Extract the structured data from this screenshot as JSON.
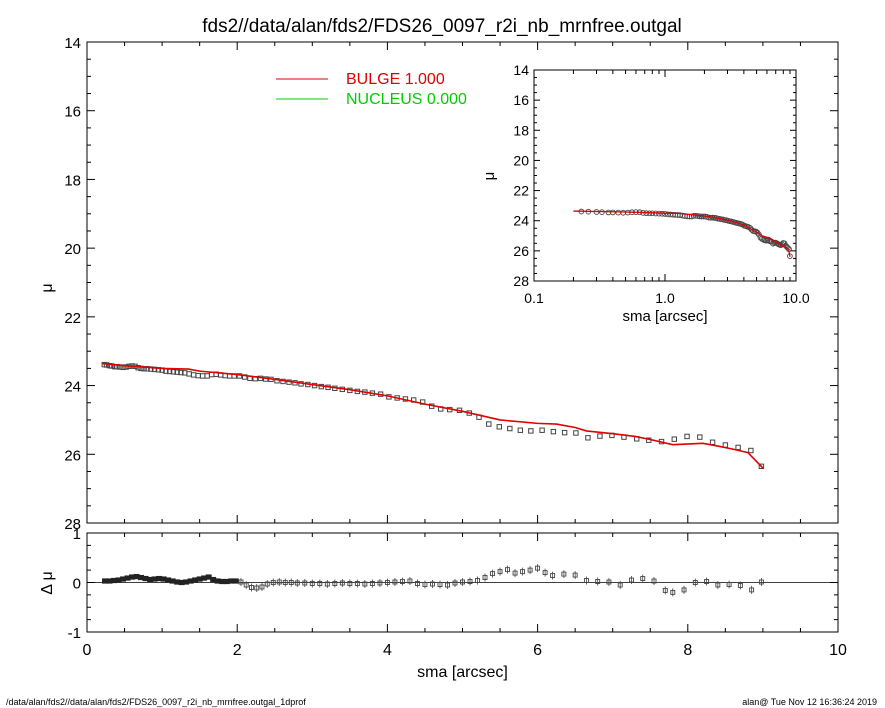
{
  "title": "fds2//data/alan/fds2/FDS26_0097_r2i_nb_mrnfree.outgal",
  "footer_left": "/data/alan/fds2//data/alan/fds2/FDS26_0097_r2i_nb_mrnfree.outgal_1dprof",
  "footer_right": "alan@  Tue Nov 12 16:36:24 2019",
  "colors": {
    "bulge": "#e00000",
    "nucleus": "#00cc00",
    "data": "#444444"
  },
  "chart_data": [
    {
      "id": "main",
      "type": "scatter",
      "xlabel": "",
      "ylabel": "μ",
      "xlim": [
        0,
        10
      ],
      "ylim": [
        28,
        14
      ],
      "y_ticks": [
        "14",
        "16",
        "18",
        "20",
        "22",
        "24",
        "26",
        "28"
      ],
      "legend": [
        {
          "name": "BULGE  1.000",
          "color": "#e00000"
        },
        {
          "name": "NUCLEUS  0.000",
          "color": "#00cc00"
        }
      ],
      "series": [
        {
          "name": "data",
          "kind": "points",
          "x": [
            0.23,
            0.26,
            0.3,
            0.33,
            0.37,
            0.4,
            0.44,
            0.48,
            0.52,
            0.56,
            0.6,
            0.64,
            0.68,
            0.72,
            0.76,
            0.8,
            0.85,
            0.9,
            0.95,
            1.0,
            1.05,
            1.1,
            1.15,
            1.2,
            1.25,
            1.3,
            1.36,
            1.42,
            1.48,
            1.54,
            1.6,
            1.66,
            1.72,
            1.78,
            1.84,
            1.9,
            1.96,
            2.03,
            2.1,
            2.17,
            2.24,
            2.31,
            2.38,
            2.45,
            2.53,
            2.61,
            2.69,
            2.77,
            2.85,
            2.94,
            3.03,
            3.12,
            3.21,
            3.3,
            3.4,
            3.5,
            3.6,
            3.7,
            3.8,
            3.91,
            4.02,
            4.13,
            4.24,
            4.35,
            4.47,
            4.59,
            4.71,
            4.83,
            4.96,
            5.09,
            5.22,
            5.35,
            5.49,
            5.63,
            5.77,
            5.91,
            6.06,
            6.21,
            6.36,
            6.51,
            6.67,
            6.83,
            6.99,
            7.15,
            7.32,
            7.48,
            7.65,
            7.82,
            7.99,
            8.16,
            8.33,
            8.5,
            8.67,
            8.84,
            8.98
          ],
          "y": [
            23.39,
            23.4,
            23.42,
            23.43,
            23.45,
            23.45,
            23.46,
            23.47,
            23.46,
            23.44,
            23.43,
            23.44,
            23.48,
            23.5,
            23.51,
            23.51,
            23.52,
            23.53,
            23.54,
            23.55,
            23.58,
            23.59,
            23.6,
            23.61,
            23.62,
            23.63,
            23.66,
            23.69,
            23.71,
            23.72,
            23.72,
            23.68,
            23.67,
            23.69,
            23.71,
            23.72,
            23.72,
            23.72,
            23.75,
            23.79,
            23.8,
            23.79,
            23.81,
            23.82,
            23.86,
            23.88,
            23.9,
            23.92,
            23.95,
            23.97,
            24.0,
            24.03,
            24.05,
            24.08,
            24.11,
            24.14,
            24.17,
            24.19,
            24.22,
            24.25,
            24.33,
            24.36,
            24.39,
            24.42,
            24.48,
            24.6,
            24.68,
            24.7,
            24.72,
            24.8,
            24.92,
            25.12,
            25.2,
            25.25,
            25.3,
            25.32,
            25.3,
            25.34,
            25.37,
            25.38,
            25.52,
            25.47,
            25.45,
            25.5,
            25.55,
            25.59,
            25.63,
            25.56,
            25.48,
            25.5,
            25.65,
            25.73,
            25.8,
            25.89,
            26.35
          ]
        },
        {
          "name": "BULGE  1.000",
          "kind": "line",
          "color": "#e00000",
          "x": [
            0.2,
            0.5,
            1.0,
            1.35,
            1.5,
            2.0,
            2.5,
            3.0,
            3.5,
            4.0,
            4.5,
            5.0,
            5.5,
            6.0,
            6.25,
            6.5,
            6.65,
            7.0,
            7.3,
            7.5,
            7.8,
            8.2,
            8.4,
            8.6,
            8.8,
            9.0
          ],
          "y": [
            23.36,
            23.42,
            23.5,
            23.52,
            23.58,
            23.68,
            23.82,
            23.97,
            24.12,
            24.3,
            24.54,
            24.75,
            25.0,
            25.1,
            25.12,
            25.22,
            25.32,
            25.4,
            25.48,
            25.57,
            25.72,
            25.68,
            25.76,
            25.85,
            25.95,
            26.4
          ]
        }
      ]
    },
    {
      "id": "inset",
      "type": "scatter",
      "xlabel": "sma [arcsec]",
      "ylabel": "μ",
      "xscale": "log",
      "xlim": [
        0.1,
        10
      ],
      "ylim": [
        28,
        14
      ],
      "x_ticks": [
        "0.1",
        "1.0",
        "10.0"
      ],
      "y_ticks": [
        "14",
        "16",
        "18",
        "20",
        "22",
        "24",
        "26",
        "28"
      ],
      "series": [
        {
          "name": "data",
          "kind": "points",
          "ref": "main.data"
        },
        {
          "name": "BULGE  1.000",
          "kind": "line",
          "ref": "main.bulge",
          "color": "#e00000"
        }
      ]
    },
    {
      "id": "residual",
      "type": "scatter",
      "xlabel": "sma [arcsec]",
      "ylabel": "Δ μ",
      "xlim": [
        0,
        10
      ],
      "ylim": [
        -1,
        1
      ],
      "x_ticks": [
        "0",
        "2",
        "4",
        "6",
        "8",
        "10"
      ],
      "y_ticks": [
        "1",
        "0",
        "-1"
      ],
      "series": [
        {
          "name": "residual",
          "kind": "points",
          "x": [
            0.24,
            0.3,
            0.36,
            0.42,
            0.48,
            0.54,
            0.6,
            0.66,
            0.72,
            0.78,
            0.84,
            0.9,
            0.96,
            1.02,
            1.08,
            1.14,
            1.2,
            1.26,
            1.32,
            1.38,
            1.44,
            1.5,
            1.56,
            1.62,
            1.68,
            1.74,
            1.8,
            1.86,
            1.92,
            1.98,
            2.05,
            2.12,
            2.19,
            2.26,
            2.33,
            2.4,
            2.48,
            2.56,
            2.64,
            2.72,
            2.8,
            2.9,
            3.0,
            3.1,
            3.2,
            3.3,
            3.4,
            3.5,
            3.6,
            3.7,
            3.8,
            3.9,
            4.0,
            4.1,
            4.2,
            4.3,
            4.4,
            4.5,
            4.6,
            4.7,
            4.8,
            4.9,
            5.0,
            5.1,
            5.2,
            5.3,
            5.4,
            5.5,
            5.6,
            5.7,
            5.8,
            5.9,
            6.0,
            6.1,
            6.2,
            6.35,
            6.5,
            6.65,
            6.8,
            6.95,
            7.1,
            7.25,
            7.4,
            7.55,
            7.7,
            7.8,
            7.95,
            8.1,
            8.25,
            8.4,
            8.55,
            8.7,
            8.85,
            8.98
          ],
          "y": [
            0.03,
            0.03,
            0.04,
            0.05,
            0.07,
            0.09,
            0.11,
            0.12,
            0.1,
            0.08,
            0.06,
            0.07,
            0.08,
            0.07,
            0.05,
            0.03,
            0.01,
            0.0,
            0.01,
            0.03,
            0.05,
            0.07,
            0.09,
            0.11,
            0.06,
            0.03,
            0.02,
            0.02,
            0.03,
            0.03,
            0.01,
            -0.05,
            -0.1,
            -0.11,
            -0.09,
            -0.03,
            0.0,
            0.01,
            0.0,
            0.0,
            -0.01,
            -0.01,
            -0.02,
            -0.02,
            -0.03,
            -0.02,
            -0.01,
            -0.02,
            -0.02,
            -0.03,
            -0.02,
            -0.01,
            0.0,
            0.01,
            0.02,
            0.03,
            -0.02,
            -0.04,
            -0.03,
            -0.04,
            -0.05,
            -0.01,
            0.01,
            0.02,
            0.04,
            0.1,
            0.18,
            0.22,
            0.26,
            0.19,
            0.22,
            0.25,
            0.29,
            0.2,
            0.14,
            0.17,
            0.15,
            0.04,
            0.02,
            0.01,
            -0.05,
            0.05,
            0.08,
            0.03,
            -0.16,
            -0.2,
            -0.15,
            0.0,
            0.02,
            -0.05,
            -0.04,
            -0.06,
            -0.15,
            0.01
          ]
        }
      ]
    }
  ]
}
